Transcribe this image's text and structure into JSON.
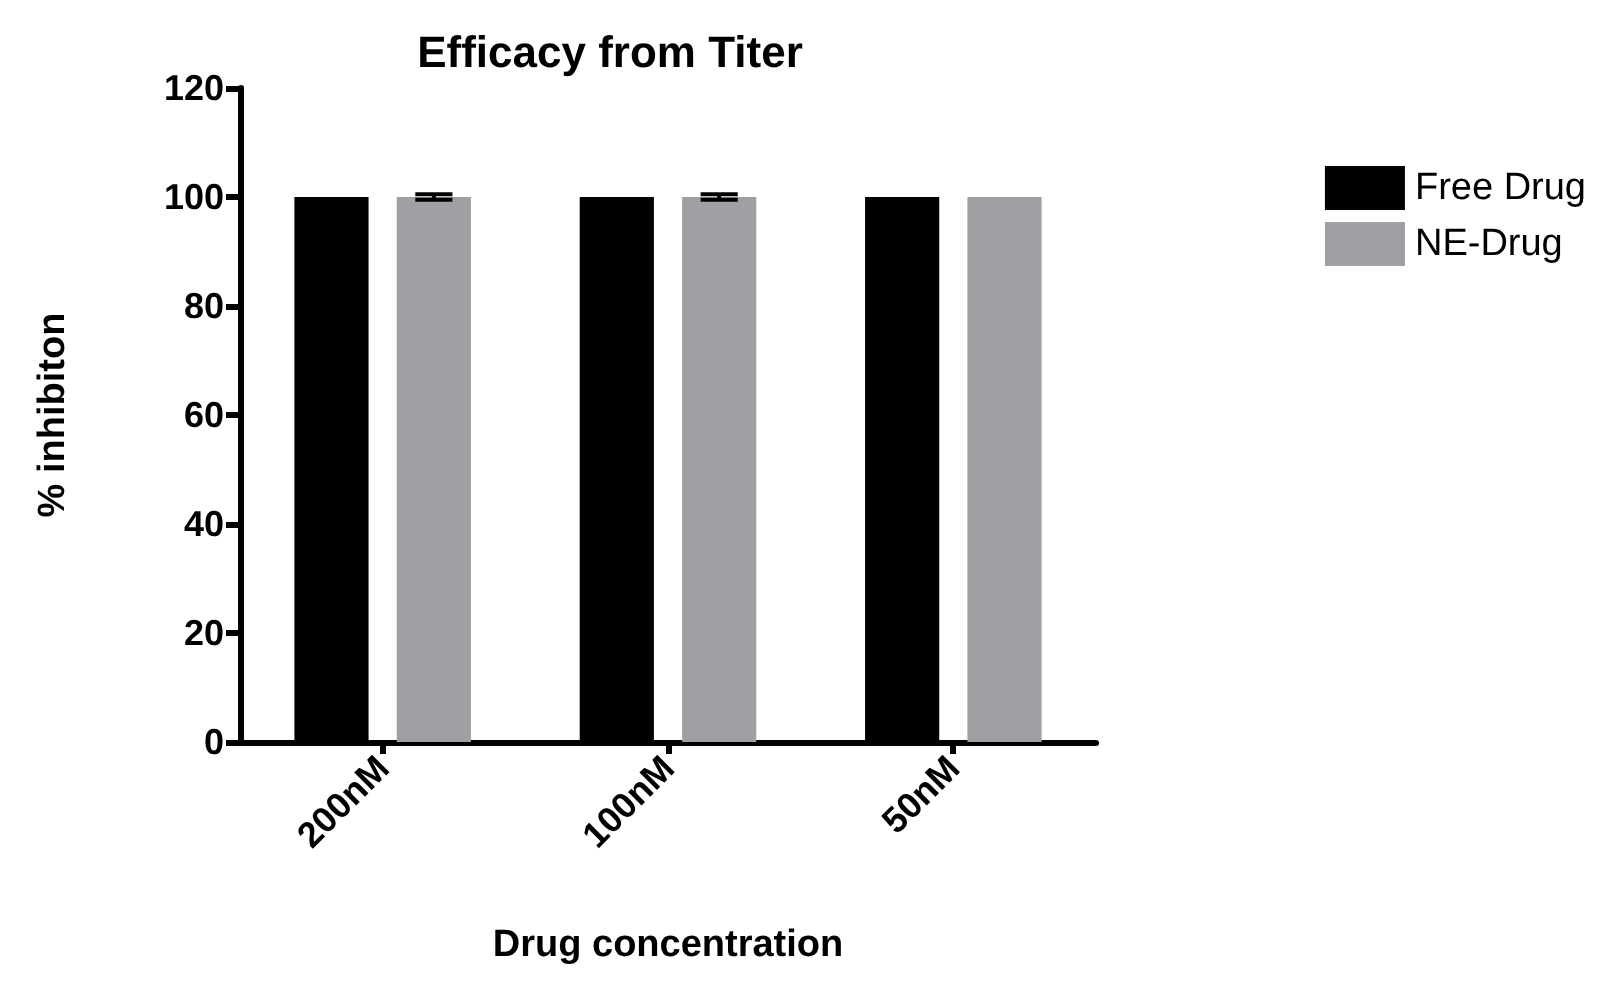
{
  "chart_data": {
    "type": "bar",
    "title": "Efficacy from Titer",
    "xlabel": "Drug concentration",
    "ylabel": "% inhibiton",
    "categories": [
      "200nM",
      "100nM",
      "50nM"
    ],
    "series": [
      {
        "name": "Free Drug",
        "color": "#000000",
        "values": [
          100,
          100,
          100
        ]
      },
      {
        "name": "NE-Drug",
        "color": "#a0a0a4",
        "values": [
          100,
          100,
          100
        ],
        "errors": [
          0.5,
          0.5,
          null
        ]
      }
    ],
    "ylim": [
      0,
      120
    ],
    "yticks": [
      0,
      20,
      40,
      60,
      80,
      100,
      120
    ],
    "grid": false,
    "legend": "top right"
  }
}
